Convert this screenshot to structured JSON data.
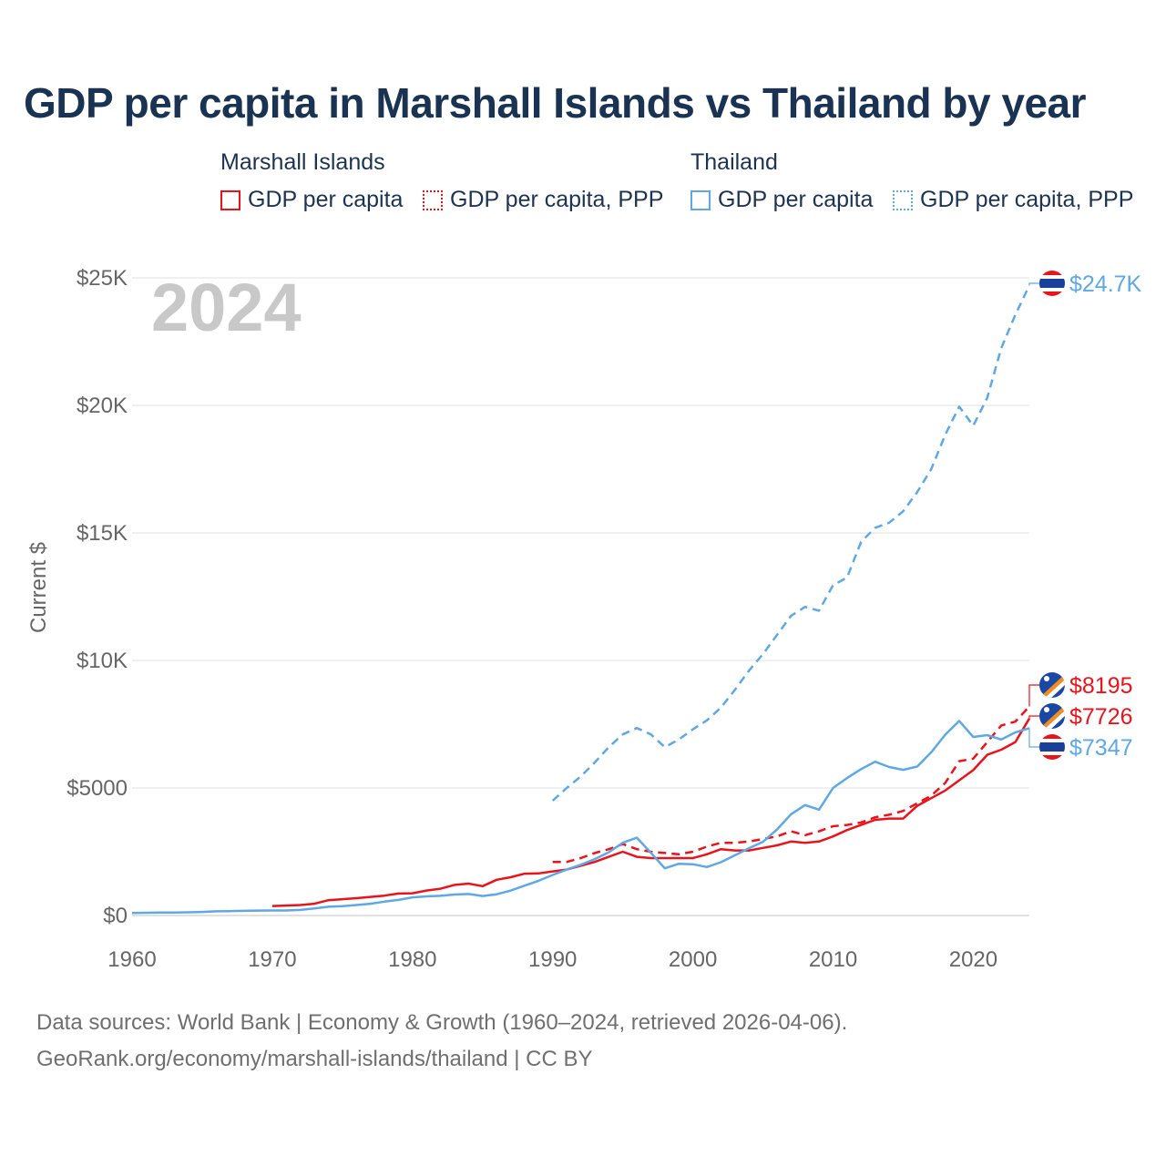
{
  "title": "GDP per capita in Marshall Islands vs Thailand by year",
  "legend": {
    "groups": [
      {
        "country": "Marshall Islands",
        "color": "#e8141c",
        "items": [
          {
            "label": "GDP per capita",
            "style": "solid"
          },
          {
            "label": "GDP per capita, PPP",
            "style": "dotted"
          }
        ]
      },
      {
        "country": "Thailand",
        "color": "#5fa8e4",
        "items": [
          {
            "label": "GDP per capita",
            "style": "solid"
          },
          {
            "label": "GDP per capita, PPP",
            "style": "dotted"
          }
        ]
      }
    ]
  },
  "year_badge": "2024",
  "footer": {
    "line1": "Data sources: World Bank | Economy & Growth (1960–2024, retrieved 2026-04-06).",
    "line2": "GeoRank.org/economy/marshall-islands/thailand | CC BY"
  },
  "colors": {
    "marshall": "#e8141c",
    "thailand": "#5fa8e4",
    "grid": "#e6e6e6",
    "axis_text": "#666666",
    "badge": "#c8c8c8"
  },
  "chart_data": {
    "type": "line",
    "title": "GDP per capita in Marshall Islands vs Thailand by year",
    "xlabel": "",
    "ylabel": "Current $",
    "xlim": [
      1960,
      2024
    ],
    "ylim": [
      0,
      25000
    ],
    "x_ticks": [
      1960,
      1970,
      1980,
      1990,
      2000,
      2010,
      2020
    ],
    "y_ticks": [
      0,
      5000,
      10000,
      15000,
      20000,
      25000
    ],
    "y_tick_labels": [
      "$0",
      "$5000",
      "$10K",
      "$15K",
      "$20K",
      "$25K"
    ],
    "grid": true,
    "series": [
      {
        "name": "Marshall Islands GDP per capita",
        "country": "Marshall Islands",
        "dash": "solid",
        "color": "#e8141c",
        "x": [
          1970,
          1971,
          1972,
          1973,
          1974,
          1975,
          1976,
          1977,
          1978,
          1979,
          1980,
          1981,
          1982,
          1983,
          1984,
          1985,
          1986,
          1987,
          1988,
          1989,
          1990,
          1991,
          1992,
          1993,
          1994,
          1995,
          1996,
          1997,
          1998,
          1999,
          2000,
          2001,
          2002,
          2003,
          2004,
          2005,
          2006,
          2007,
          2008,
          2009,
          2010,
          2011,
          2012,
          2013,
          2014,
          2015,
          2016,
          2017,
          2018,
          2019,
          2020,
          2021,
          2022,
          2023,
          2024
        ],
        "y": [
          370,
          390,
          410,
          460,
          600,
          640,
          680,
          730,
          780,
          860,
          870,
          980,
          1050,
          1200,
          1250,
          1150,
          1400,
          1500,
          1640,
          1650,
          1730,
          1800,
          1950,
          2100,
          2300,
          2500,
          2300,
          2250,
          2250,
          2250,
          2250,
          2400,
          2600,
          2550,
          2550,
          2650,
          2750,
          2900,
          2850,
          2900,
          3100,
          3350,
          3550,
          3750,
          3800,
          3800,
          4300,
          4600,
          4900,
          5300,
          5700,
          6300,
          6500,
          6800,
          7726
        ]
      },
      {
        "name": "Marshall Islands GDP per capita, PPP",
        "country": "Marshall Islands",
        "dash": "dashed",
        "color": "#e8141c",
        "x": [
          1990,
          1991,
          1992,
          1993,
          1994,
          1995,
          1996,
          1997,
          1998,
          1999,
          2000,
          2001,
          2002,
          2003,
          2004,
          2005,
          2006,
          2007,
          2008,
          2009,
          2010,
          2011,
          2012,
          2013,
          2014,
          2015,
          2016,
          2017,
          2018,
          2019,
          2020,
          2021,
          2022,
          2023,
          2024
        ],
        "y": [
          2100,
          2100,
          2250,
          2450,
          2600,
          2800,
          2600,
          2500,
          2450,
          2400,
          2500,
          2700,
          2850,
          2850,
          2900,
          3000,
          3100,
          3300,
          3150,
          3300,
          3500,
          3550,
          3650,
          3850,
          3950,
          4100,
          4400,
          4700,
          5200,
          6050,
          6150,
          6800,
          7450,
          7600,
          8195
        ]
      },
      {
        "name": "Thailand GDP per capita",
        "country": "Thailand",
        "dash": "solid",
        "color": "#5fa8e4",
        "x": [
          1960,
          1961,
          1962,
          1963,
          1964,
          1965,
          1966,
          1967,
          1968,
          1969,
          1970,
          1971,
          1972,
          1973,
          1974,
          1975,
          1976,
          1977,
          1978,
          1979,
          1980,
          1981,
          1982,
          1983,
          1984,
          1985,
          1986,
          1987,
          1988,
          1989,
          1990,
          1991,
          1992,
          1993,
          1994,
          1995,
          1996,
          1997,
          1998,
          1999,
          2000,
          2001,
          2002,
          2003,
          2004,
          2005,
          2006,
          2007,
          2008,
          2009,
          2010,
          2011,
          2012,
          2013,
          2014,
          2015,
          2016,
          2017,
          2018,
          2019,
          2020,
          2021,
          2022,
          2023,
          2024
        ],
        "y": [
          101,
          107,
          113,
          118,
          126,
          138,
          164,
          172,
          181,
          193,
          197,
          198,
          217,
          274,
          344,
          366,
          409,
          459,
          542,
          610,
          709,
          749,
          770,
          821,
          844,
          764,
          832,
          974,
          1170,
          1360,
          1590,
          1800,
          1990,
          2210,
          2480,
          2850,
          3050,
          2460,
          1850,
          2030,
          2010,
          1900,
          2090,
          2360,
          2640,
          2890,
          3370,
          3970,
          4330,
          4150,
          5000,
          5390,
          5740,
          6030,
          5820,
          5710,
          5840,
          6400,
          7090,
          7630,
          7000,
          7070,
          6900,
          7180,
          7347
        ]
      },
      {
        "name": "Thailand GDP per capita, PPP",
        "country": "Thailand",
        "dash": "dashed",
        "color": "#5fa8e4",
        "x": [
          1990,
          1991,
          1992,
          1993,
          1994,
          1995,
          1996,
          1997,
          1998,
          1999,
          2000,
          2001,
          2002,
          2003,
          2004,
          2005,
          2006,
          2007,
          2008,
          2009,
          2010,
          2011,
          2012,
          2013,
          2014,
          2015,
          2016,
          2017,
          2018,
          2019,
          2020,
          2021,
          2022,
          2023,
          2024
        ],
        "y": [
          4500,
          5000,
          5450,
          6000,
          6600,
          7100,
          7350,
          7100,
          6600,
          6900,
          7300,
          7650,
          8150,
          8850,
          9600,
          10250,
          11000,
          11750,
          12100,
          11950,
          12950,
          13250,
          14650,
          15200,
          15400,
          15850,
          16600,
          17500,
          18850,
          19950,
          19200,
          20300,
          22250,
          23550,
          24700
        ]
      }
    ],
    "end_labels": [
      {
        "country": "Thailand",
        "series": "Thailand GDP per capita, PPP",
        "text": "$24.7K",
        "color": "#5fa8e4"
      },
      {
        "country": "Marshall Islands",
        "series": "Marshall Islands GDP per capita, PPP",
        "text": "$8195",
        "color": "#e8141c"
      },
      {
        "country": "Marshall Islands",
        "series": "Marshall Islands GDP per capita",
        "text": "$7726",
        "color": "#e8141c"
      },
      {
        "country": "Thailand",
        "series": "Thailand GDP per capita",
        "text": "$7347",
        "color": "#5fa8e4"
      }
    ]
  }
}
